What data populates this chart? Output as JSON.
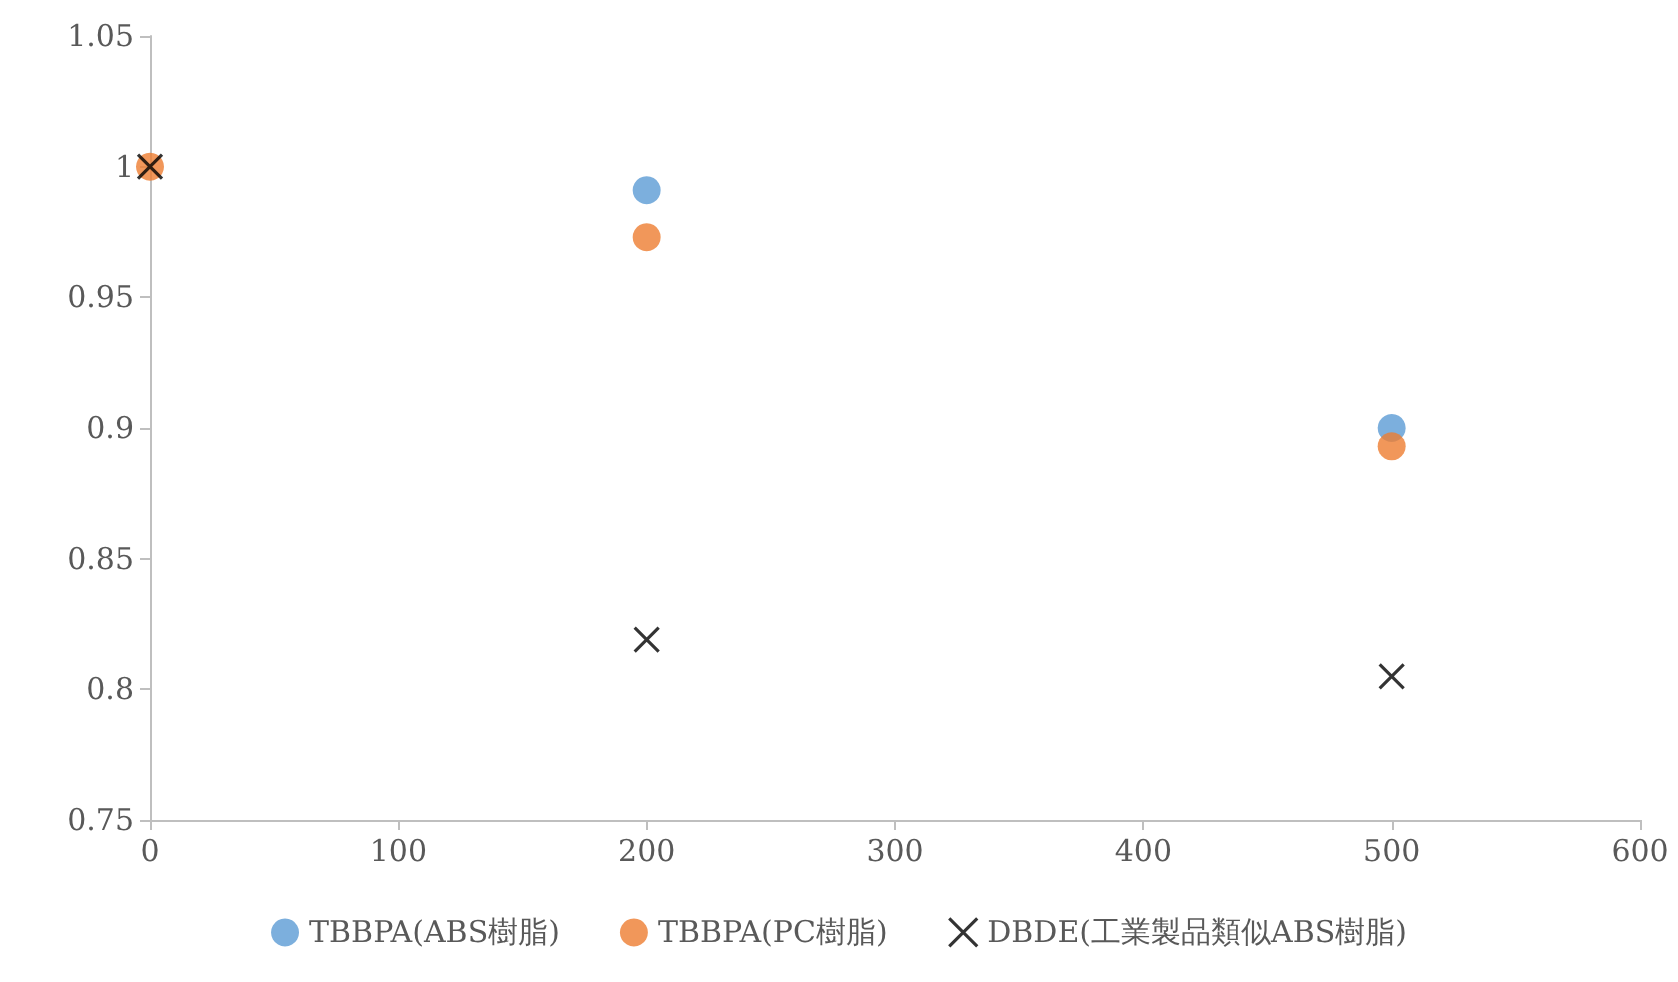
{
  "chart_data": {
    "type": "scatter",
    "x": [
      0,
      200,
      500
    ],
    "series": [
      {
        "name": "TBBPA(ABS樹脂)",
        "color": "#5b9bd5",
        "marker": "circle",
        "values": [
          null,
          0.991,
          0.9
        ]
      },
      {
        "name": "TBBPA(PC樹脂)",
        "color": "#ed7d31",
        "marker": "circle",
        "values": [
          1,
          0.973,
          0.893
        ]
      },
      {
        "name": "DBDE(工業製品類似ABS樹脂)",
        "color": "#000000",
        "marker": "cross",
        "values": [
          1,
          0.819,
          0.805
        ]
      }
    ],
    "xlim": [
      0,
      600
    ],
    "xticks": [
      0,
      100,
      200,
      300,
      400,
      500,
      600
    ],
    "ylim": [
      0.75,
      1.05
    ],
    "yticks": [
      0.75,
      0.8,
      0.85,
      0.9,
      0.95,
      1,
      1.05
    ],
    "grid": false,
    "legend": "bottom"
  }
}
